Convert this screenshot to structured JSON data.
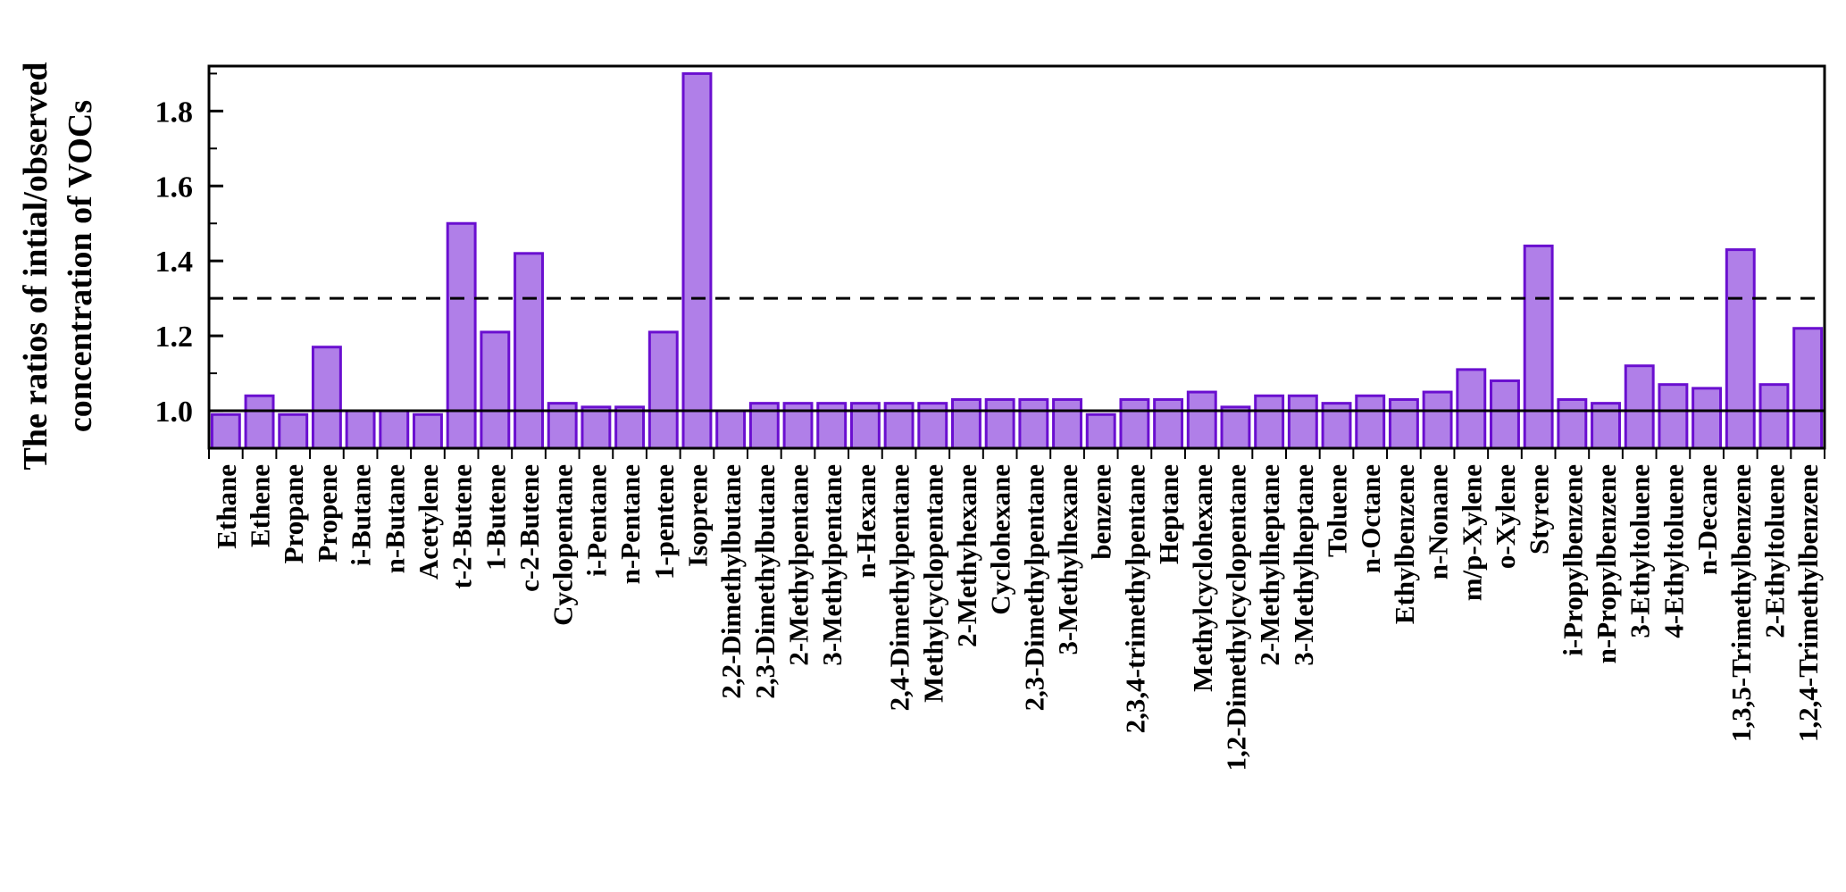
{
  "chart_data": {
    "type": "bar",
    "ylabel_lines": [
      "The ratios of intial/observed",
      "concentration of VOCs"
    ],
    "ylim": [
      0.9,
      1.92
    ],
    "yticks": [
      "1.0",
      "1.2",
      "1.4",
      "1.6",
      "1.8"
    ],
    "reference_lines": [
      1.0,
      1.3
    ],
    "grid": false,
    "bar_color": "#b07fe8",
    "bar_edge_color": "#6a0fd0",
    "categories": [
      "Ethane",
      "Ethene",
      "Propane",
      "Propene",
      "i-Butane",
      "n-Butane",
      "Acetylene",
      "t-2-Butene",
      "1-Butene",
      "c-2-Butene",
      "Cyclopentane",
      "i-Pentane",
      "n-Pentane",
      "1-pentene",
      "Isoprene",
      "2,2-Dimethylbutane",
      "2,3-Dimethylbutane",
      "2-Methylpentane",
      "3-Methylpentane",
      "n-Hexane",
      "2,4-Dimethylpentane",
      "Methylcyclopentane",
      "2-Methyhexane",
      "Cyclohexane",
      "2,3-Dimethylpentane",
      "3-Methylhexane",
      "benzene",
      "2,3,4-trimethylpentane",
      "Heptane",
      "Methylcyclohexane",
      "1,2-Dimethylcyclopentane",
      "2-Methylheptane",
      "3-Methylheptane",
      "Toluene",
      "n-Octane",
      "Ethylbenzene",
      "n-Nonane",
      "m/p-Xylene",
      "o-Xylene",
      "Styrene",
      "i-Propylbenzene",
      "n-Propylbenzene",
      "3-Ethyltoluene",
      "4-Ethyltoluene",
      "n-Decane",
      "1,3,5-Trimethylbenzene",
      "2-Ethyltoluene",
      "1,2,4-Trimethylbenzene"
    ],
    "values": [
      0.99,
      1.04,
      0.99,
      1.17,
      1.0,
      1.0,
      0.99,
      1.5,
      1.21,
      1.42,
      1.02,
      1.01,
      1.01,
      1.21,
      1.9,
      1.0,
      1.02,
      1.02,
      1.02,
      1.02,
      1.02,
      1.02,
      1.03,
      1.03,
      1.03,
      1.03,
      0.99,
      1.03,
      1.03,
      1.05,
      1.01,
      1.04,
      1.04,
      1.02,
      1.04,
      1.03,
      1.05,
      1.11,
      1.08,
      1.44,
      1.03,
      1.02,
      1.12,
      1.07,
      1.06,
      1.43,
      1.07,
      1.22
    ]
  }
}
